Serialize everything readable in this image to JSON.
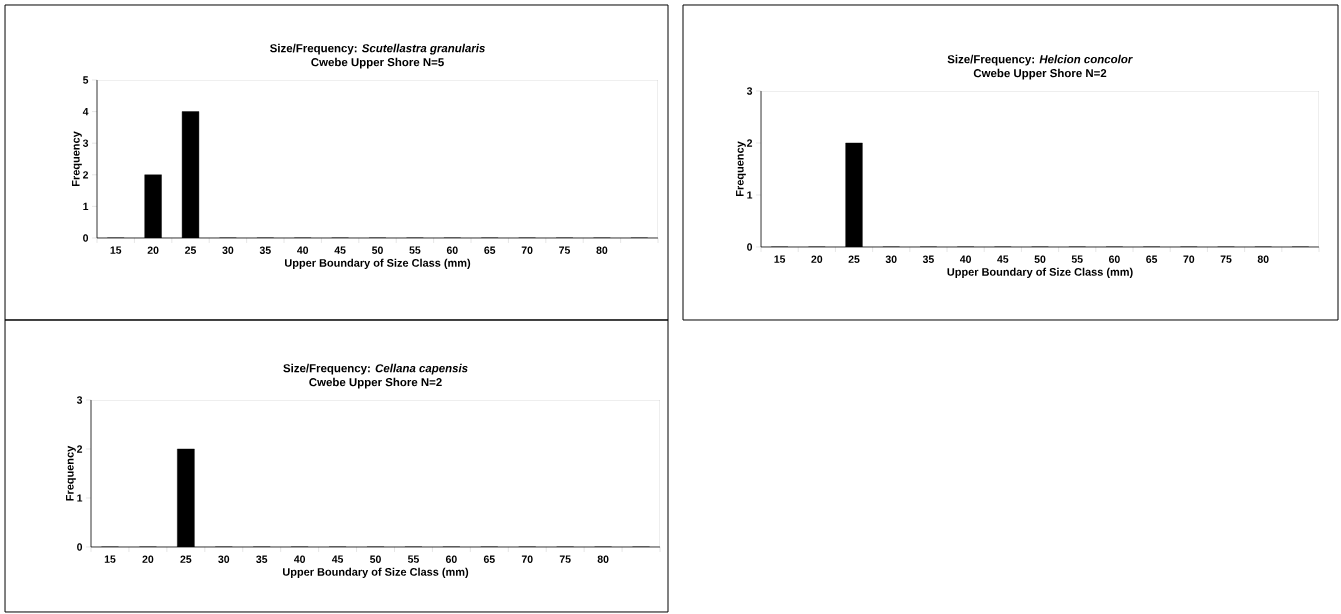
{
  "chart_data": [
    {
      "type": "bar",
      "title": "Size/Frequency:  *Scutellastra  granularis*",
      "subtitle": "Cwebe Upper Shore N=5",
      "xlabel": "Upper Boundary of Size Class (mm)",
      "ylabel": "Frequency",
      "categories": [
        "15",
        "20",
        "25",
        "30",
        "35",
        "40",
        "45",
        "50",
        "55",
        "60",
        "65",
        "70",
        "75",
        "80",
        null
      ],
      "values": [
        0,
        2,
        4,
        0,
        0,
        0,
        0,
        0,
        0,
        0,
        0,
        0,
        0,
        0,
        0
      ],
      "color": "#000000",
      "ylim": [
        0,
        5
      ],
      "yticks": [
        0,
        1,
        2,
        3,
        4,
        5
      ]
    },
    {
      "type": "bar",
      "title": "Size/Frequency: *Helcion  concolor*",
      "subtitle": "Cwebe Upper Shore N=2",
      "xlabel": "Upper Boundary of Size Class (mm)",
      "ylabel": "Frequency",
      "categories": [
        "15",
        "20",
        "25",
        "30",
        "35",
        "40",
        "45",
        "50",
        "55",
        "60",
        "65",
        "70",
        "75",
        "80",
        null
      ],
      "values": [
        0,
        0,
        2,
        0,
        0,
        0,
        0,
        0,
        0,
        0,
        0,
        0,
        0,
        0,
        0
      ],
      "color": "#000000",
      "ylim": [
        0,
        3
      ],
      "yticks": [
        0,
        1,
        2,
        3
      ]
    },
    {
      "type": "bar",
      "title": "Size/Frequency: *Cellana  capensis*",
      "subtitle": "Cwebe Upper Shore N=2",
      "xlabel": "Upper Boundary of Size Class (mm)",
      "ylabel": "Frequency",
      "categories": [
        "15",
        "20",
        "25",
        "30",
        "35",
        "40",
        "45",
        "50",
        "55",
        "60",
        "65",
        "70",
        "75",
        "80",
        null
      ],
      "values": [
        0,
        0,
        2,
        0,
        0,
        0,
        0,
        0,
        0,
        0,
        0,
        0,
        0,
        0,
        0
      ],
      "color": "#000000",
      "ylim": [
        0,
        3
      ],
      "yticks": [
        0,
        1,
        2,
        3
      ]
    }
  ]
}
